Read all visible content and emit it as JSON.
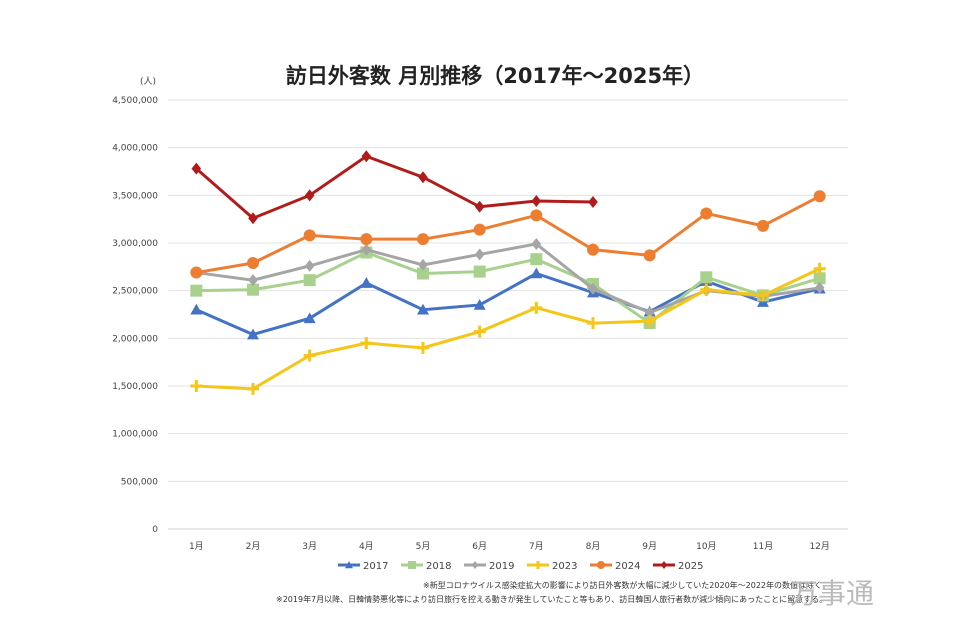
{
  "chart_data": {
    "type": "line",
    "title": "訪日外客数 月別推移（2017年～2025年）",
    "ylabel": "(人)",
    "ylim": [
      0,
      4500000
    ],
    "yticks": [
      "0",
      "500,000",
      "1,000,000",
      "1,500,000",
      "2,000,000",
      "2,500,000",
      "3,000,000",
      "3,500,000",
      "4,000,000",
      "4,500,000"
    ],
    "categories": [
      "1月",
      "2月",
      "3月",
      "4月",
      "5月",
      "6月",
      "7月",
      "8月",
      "9月",
      "10月",
      "11月",
      "12月"
    ],
    "grid": true,
    "legend": "bottom",
    "series": [
      {
        "name": "2017",
        "color": "#4472c4",
        "marker": "triangle",
        "values": [
          2300000,
          2040000,
          2210000,
          2580000,
          2300000,
          2350000,
          2680000,
          2480000,
          2280000,
          2600000,
          2380000,
          2520000
        ]
      },
      {
        "name": "2018",
        "color": "#a9d18e",
        "marker": "square",
        "values": [
          2500000,
          2510000,
          2610000,
          2900000,
          2680000,
          2700000,
          2830000,
          2570000,
          2160000,
          2640000,
          2450000,
          2630000
        ]
      },
      {
        "name": "2019",
        "color": "#a5a5a5",
        "marker": "diamond",
        "values": [
          2690000,
          2610000,
          2760000,
          2930000,
          2770000,
          2880000,
          2990000,
          2520000,
          2270000,
          2500000,
          2440000,
          2530000
        ]
      },
      {
        "name": "2023",
        "color": "#f5c518",
        "marker": "plus",
        "values": [
          1500000,
          1470000,
          1820000,
          1950000,
          1900000,
          2070000,
          2320000,
          2160000,
          2180000,
          2510000,
          2450000,
          2730000
        ]
      },
      {
        "name": "2024",
        "color": "#ed7d31",
        "marker": "circle",
        "values": [
          2690000,
          2790000,
          3080000,
          3040000,
          3040000,
          3140000,
          3290000,
          2930000,
          2870000,
          3310000,
          3180000,
          3490000
        ]
      },
      {
        "name": "2025",
        "color": "#b01c1c",
        "marker": "diamond",
        "values": [
          3780000,
          3260000,
          3500000,
          3910000,
          3690000,
          3380000,
          3440000,
          3430000,
          null,
          null,
          null,
          null
        ]
      }
    ]
  },
  "notes": [
    "※新型コロナウイルス感染症拡大の影響により訪日外客数が大幅に減少していた2020年～2022年の数値は除く",
    "※2019年7月以降、日韓情勢悪化等により訪日旅行を控える動きが発生していたこと等もあり、訪日韓国人旅行者数が減少傾向にあったことに留意する。"
  ],
  "watermark": "万事通"
}
